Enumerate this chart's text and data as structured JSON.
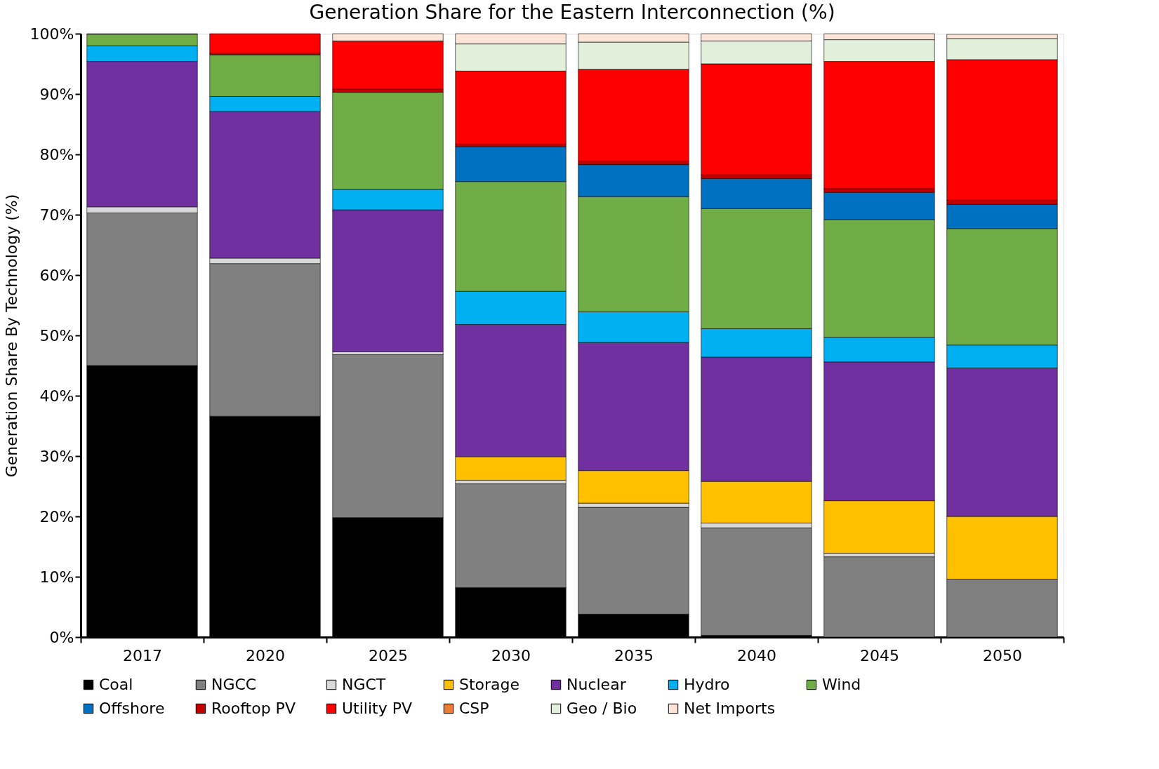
{
  "chart_data": {
    "type": "bar",
    "stacked": true,
    "title": "Generation Share for the Eastern Interconnection (%)",
    "ylabel": "Generation Share By Technology (%)",
    "categories": [
      "2017",
      "2020",
      "2025",
      "2030",
      "2035",
      "2040",
      "2045",
      "2050"
    ],
    "ylim": [
      0,
      100
    ],
    "yticks": [
      {
        "value": 0,
        "label": "0%"
      },
      {
        "value": 10,
        "label": "10%"
      },
      {
        "value": 20,
        "label": "20%"
      },
      {
        "value": 30,
        "label": "30%"
      },
      {
        "value": 40,
        "label": "40%"
      },
      {
        "value": 50,
        "label": "50%"
      },
      {
        "value": 60,
        "label": "60%"
      },
      {
        "value": 70,
        "label": "70%"
      },
      {
        "value": 80,
        "label": "80%"
      },
      {
        "value": 90,
        "label": "90%"
      },
      {
        "value": 100,
        "label": "100%"
      }
    ],
    "grid": false,
    "legend": "bottom",
    "series": [
      {
        "name": "Coal",
        "color": "#000000",
        "values": [
          45.0,
          36.6,
          19.8,
          8.2,
          3.8,
          0.3,
          0,
          0
        ]
      },
      {
        "name": "NGCC",
        "color": "#808080",
        "values": [
          25.3,
          25.3,
          27.0,
          17.2,
          17.7,
          17.8,
          13.3,
          9.6
        ]
      },
      {
        "name": "NGCT",
        "color": "#d9d9d9",
        "values": [
          1.0,
          0.9,
          0.5,
          0.6,
          0.7,
          0.8,
          0.6,
          0
        ]
      },
      {
        "name": "Storage",
        "color": "#ffc000",
        "values": [
          0,
          0,
          0,
          3.9,
          5.4,
          6.9,
          8.7,
          10.4
        ]
      },
      {
        "name": "Nuclear",
        "color": "#7030a0",
        "values": [
          24.1,
          24.3,
          23.5,
          21.9,
          21.2,
          20.6,
          23.0,
          24.6
        ]
      },
      {
        "name": "Hydro",
        "color": "#00b0f0",
        "values": [
          2.6,
          2.5,
          3.4,
          5.5,
          5.1,
          4.7,
          4.1,
          3.8
        ]
      },
      {
        "name": "Wind",
        "color": "#70ad47",
        "values": [
          1.9,
          6.9,
          16.1,
          18.2,
          19.1,
          19.9,
          19.5,
          19.3
        ]
      },
      {
        "name": "Offshore",
        "color": "#0070c0",
        "values": [
          0,
          0,
          0,
          5.8,
          5.3,
          5.0,
          4.5,
          4.0
        ]
      },
      {
        "name": "Rooftop PV",
        "color": "#c00000",
        "values": [
          0,
          0.3,
          0.5,
          0.4,
          0.6,
          0.6,
          0.6,
          0.7
        ]
      },
      {
        "name": "Utility PV",
        "color": "#ff0000",
        "values": [
          0,
          3.2,
          8.0,
          12.1,
          15.2,
          18.4,
          21.1,
          23.3
        ]
      },
      {
        "name": "CSP",
        "color": "#ed7d31",
        "values": [
          0,
          0,
          0,
          0,
          0,
          0,
          0,
          0
        ]
      },
      {
        "name": "Geo / Bio",
        "color": "#e2efda",
        "values": [
          0.1,
          0,
          0,
          4.5,
          4.5,
          3.8,
          3.6,
          3.5
        ]
      },
      {
        "name": "Net Imports",
        "color": "#fce4d6",
        "values": [
          0,
          0,
          1.2,
          1.7,
          1.4,
          1.2,
          1.0,
          0.7
        ]
      }
    ]
  }
}
